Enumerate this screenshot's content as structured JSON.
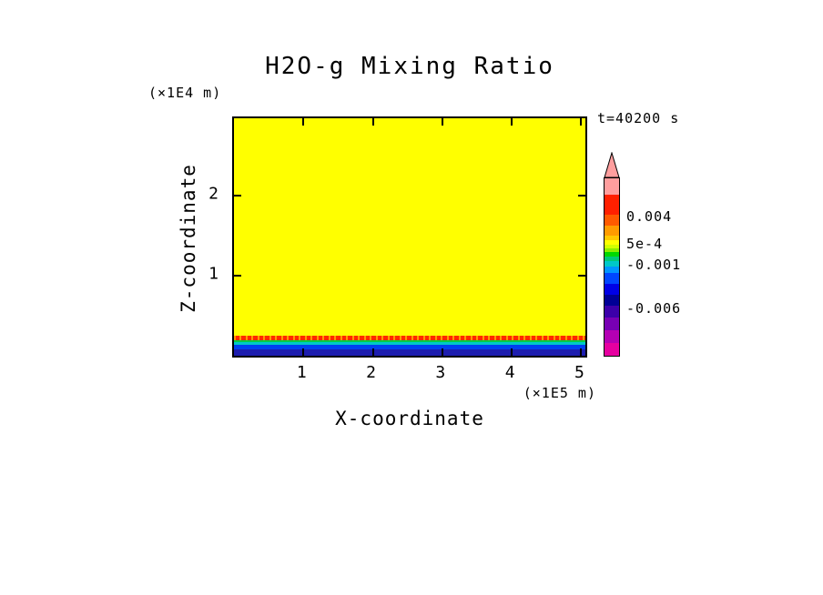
{
  "figure": {
    "background": "#FFFFFF",
    "frame_color": "#000000",
    "text_color": "#000000"
  },
  "chart_data": {
    "type": "heatmap",
    "title": "H2O-g Mixing Ratio",
    "time_label": "t=40200 s",
    "xlabel": "X-coordinate",
    "x_unit": "(×1E5 m)",
    "ylabel": "Z-coordinate",
    "y_unit": "(×1E4 m)",
    "xlim": [
      0,
      5.06
    ],
    "ylim": [
      0,
      2.96
    ],
    "x_ticks": [
      1,
      2,
      3,
      4,
      5
    ],
    "y_ticks": [
      1,
      2
    ],
    "grid": false,
    "legend_position": "right-colorbar",
    "field_description": "Horizontally uniform H2O-g mixing ratio field: interior is approx 5e-4 (yellow) above z of about 0.25x1E4 m; a thin noisy maximum of approx 0.004 (red/orange) sits near z of 0.2x1E4 m; values drop through 0 (green), -0.001 (cyan), -0.003 (blue) to approx -0.006 (navy) at the surface.",
    "field_bands": [
      {
        "name": "interior-yellow",
        "value": "~5e-4",
        "color": "#ffff00",
        "z_from": 0.25,
        "z_to": 2.96
      },
      {
        "name": "maximum-red-noisy",
        "value": "~0.004",
        "color": "#ff2a00",
        "speckle_color": "#ff9900",
        "z_from": 0.19,
        "z_to": 0.25
      },
      {
        "name": "green-layer",
        "value": "~0",
        "color": "#00cc44",
        "z_from": 0.165,
        "z_to": 0.19
      },
      {
        "name": "cyan-layer",
        "value": "~-0.001",
        "color": "#00c8c8",
        "z_from": 0.14,
        "z_to": 0.165
      },
      {
        "name": "blue-layer",
        "value": "~-0.003",
        "color": "#0040f0",
        "z_from": 0.085,
        "z_to": 0.14
      },
      {
        "name": "surface-navy-layer",
        "value": "~-0.006",
        "color": "#1d1daf",
        "z_from": 0.0,
        "z_to": 0.085
      }
    ],
    "colorbar": {
      "arrow_color": "#ff9e9e",
      "labels": [
        {
          "text": "0.004",
          "pos": 0.22
        },
        {
          "text": "5e-4",
          "pos": 0.375
        },
        {
          "text": "-0.001",
          "pos": 0.49
        },
        {
          "text": "-0.006",
          "pos": 0.74
        }
      ],
      "segments": [
        {
          "color": "#ff9e9e",
          "h": 18
        },
        {
          "color": "#ff2000",
          "h": 22
        },
        {
          "color": "#ff5a00",
          "h": 12
        },
        {
          "color": "#ff9b00",
          "h": 11
        },
        {
          "color": "#ffc800",
          "h": 5
        },
        {
          "color": "#ffff00",
          "h": 5
        },
        {
          "color": "#d2ff00",
          "h": 4
        },
        {
          "color": "#8cee00",
          "h": 4
        },
        {
          "color": "#00d800",
          "h": 5
        },
        {
          "color": "#00c878",
          "h": 5
        },
        {
          "color": "#00c8c8",
          "h": 6
        },
        {
          "color": "#0096ff",
          "h": 7
        },
        {
          "color": "#0046ff",
          "h": 12
        },
        {
          "color": "#0000e6",
          "h": 12
        },
        {
          "color": "#000096",
          "h": 12
        },
        {
          "color": "#3c00aa",
          "h": 13
        },
        {
          "color": "#7800b4",
          "h": 14
        },
        {
          "color": "#b400b4",
          "h": 14
        },
        {
          "color": "#e600a0",
          "h": 14
        }
      ]
    }
  }
}
